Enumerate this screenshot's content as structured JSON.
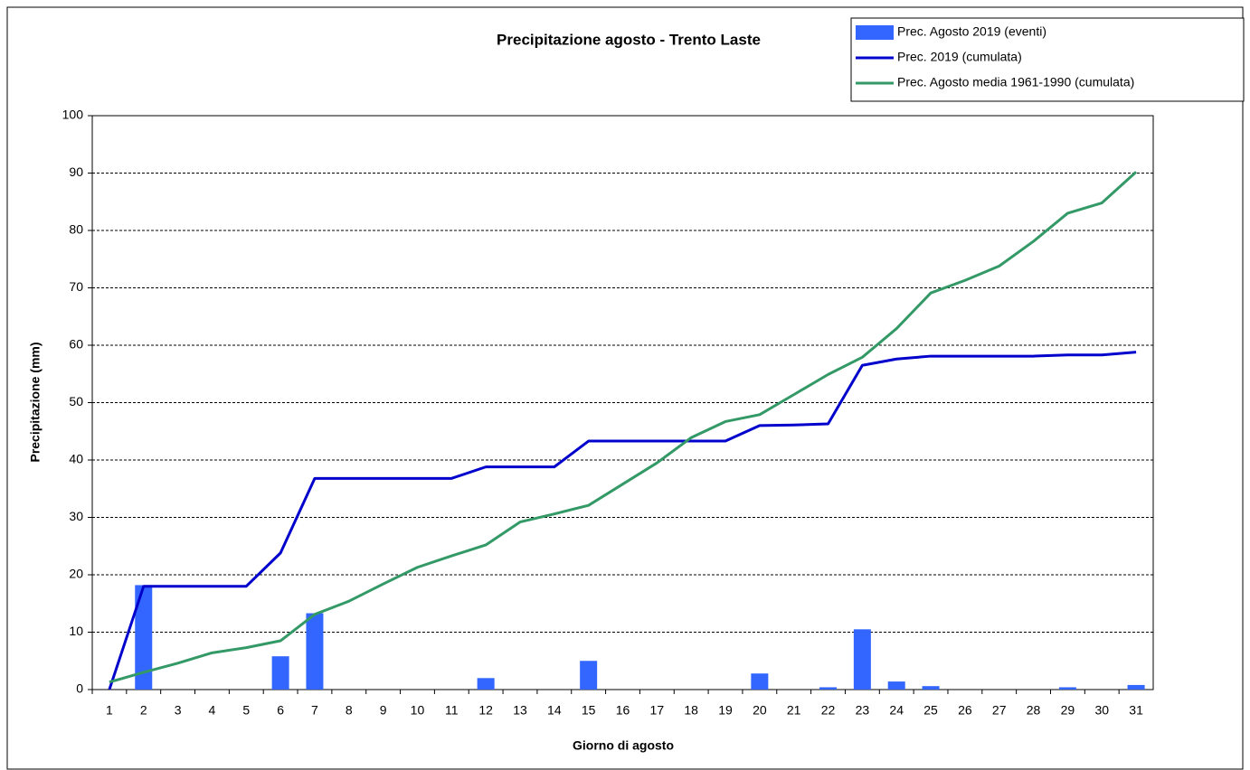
{
  "chart_data": {
    "type": "bar-line",
    "title": "Precipitazione agosto - Trento Laste",
    "x_label": "Giorno di agosto",
    "y_label": "Precipitazione (mm)",
    "categories": [
      "1",
      "2",
      "3",
      "4",
      "5",
      "6",
      "7",
      "8",
      "9",
      "10",
      "11",
      "12",
      "13",
      "14",
      "15",
      "16",
      "17",
      "18",
      "19",
      "20",
      "21",
      "22",
      "23",
      "24",
      "25",
      "26",
      "27",
      "28",
      "29",
      "30",
      "31"
    ],
    "series": [
      {
        "name": "Prec. Agosto 2019 (eventi)",
        "type": "bar",
        "color": "#3366ff",
        "values": [
          0,
          18.2,
          0,
          0,
          0,
          5.8,
          13.3,
          0,
          0,
          0,
          0,
          2.0,
          0,
          0,
          5.0,
          0,
          0,
          0,
          0,
          2.8,
          0,
          0.4,
          10.5,
          1.4,
          0.6,
          0,
          0,
          0,
          0.4,
          0,
          0.8
        ]
      },
      {
        "name": "Prec. 2019 (cumulata)",
        "type": "line",
        "color": "#0000cc",
        "values": [
          0,
          18,
          18,
          18,
          18,
          23.8,
          36.8,
          36.8,
          36.8,
          36.8,
          36.8,
          38.8,
          38.8,
          38.8,
          43.3,
          43.3,
          43.3,
          43.3,
          43.3,
          46.0,
          46.1,
          46.3,
          56.5,
          57.6,
          58.1,
          58.1,
          58.1,
          58.1,
          58.3,
          58.3,
          58.8
        ]
      },
      {
        "name": "Prec. Agosto media 1961-1990 (cumulata)",
        "type": "line",
        "color": "#339966",
        "values": [
          1.3,
          3.0,
          4.6,
          6.4,
          7.3,
          8.5,
          13.1,
          15.4,
          18.4,
          21.3,
          23.3,
          25.2,
          29.2,
          30.6,
          32.1,
          35.8,
          39.5,
          43.9,
          46.7,
          47.9,
          51.4,
          54.9,
          57.9,
          62.9,
          69.1,
          71.3,
          73.8,
          78.1,
          83.0,
          84.8,
          90.2
        ]
      }
    ],
    "ylim": [
      0,
      100
    ],
    "yticks": [
      0,
      10,
      20,
      30,
      40,
      50,
      60,
      70,
      80,
      90,
      100
    ],
    "grid": true,
    "legend": "top-right"
  }
}
